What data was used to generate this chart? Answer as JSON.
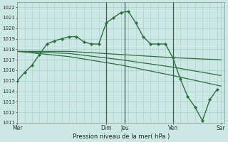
{
  "title": "Pression niveau de la mer( hPa )",
  "background_color": "#cce8e4",
  "grid_color": "#a8cec8",
  "line_color": "#2d6e3e",
  "ylim": [
    1011,
    1022.5
  ],
  "yticks": [
    1011,
    1012,
    1013,
    1014,
    1015,
    1016,
    1017,
    1018,
    1019,
    1020,
    1021,
    1022
  ],
  "xlim": [
    0,
    28
  ],
  "day_labels": [
    "Mer",
    "Dim",
    "Jeu",
    "Ven",
    "Sar"
  ],
  "day_positions": [
    0,
    12,
    14.5,
    21,
    27.5
  ],
  "vline_positions": [
    12,
    14.5,
    21
  ],
  "series": [
    {
      "x": [
        0,
        1,
        2,
        3,
        4,
        5,
        6,
        7,
        8,
        9,
        10,
        11,
        12,
        13,
        14,
        15,
        16,
        17,
        18,
        19,
        20,
        21,
        22,
        23,
        24,
        25,
        26,
        27
      ],
      "y": [
        1015.0,
        1015.8,
        1016.5,
        1017.5,
        1018.5,
        1018.8,
        1019.0,
        1019.2,
        1019.2,
        1018.7,
        1018.5,
        1018.5,
        1020.5,
        1021.0,
        1021.5,
        1021.6,
        1020.5,
        1019.2,
        1018.5,
        1018.5,
        1018.5,
        1017.2,
        1015.2,
        1013.5,
        1012.5,
        1011.2,
        1013.2,
        1014.2
      ],
      "marker": "D",
      "markersize": 2.0,
      "linewidth": 1.0
    },
    {
      "x": [
        0,
        7,
        14,
        21,
        27.5
      ],
      "y": [
        1017.8,
        1017.8,
        1017.5,
        1017.2,
        1017.0
      ],
      "marker": null,
      "markersize": 0,
      "linewidth": 0.9
    },
    {
      "x": [
        0,
        7,
        14,
        21,
        27.5
      ],
      "y": [
        1017.8,
        1017.6,
        1017.0,
        1016.3,
        1015.5
      ],
      "marker": null,
      "markersize": 0,
      "linewidth": 0.9
    },
    {
      "x": [
        0,
        7,
        14,
        21,
        27.5
      ],
      "y": [
        1017.8,
        1017.3,
        1016.5,
        1015.5,
        1014.5
      ],
      "marker": null,
      "markersize": 0,
      "linewidth": 0.9
    }
  ]
}
